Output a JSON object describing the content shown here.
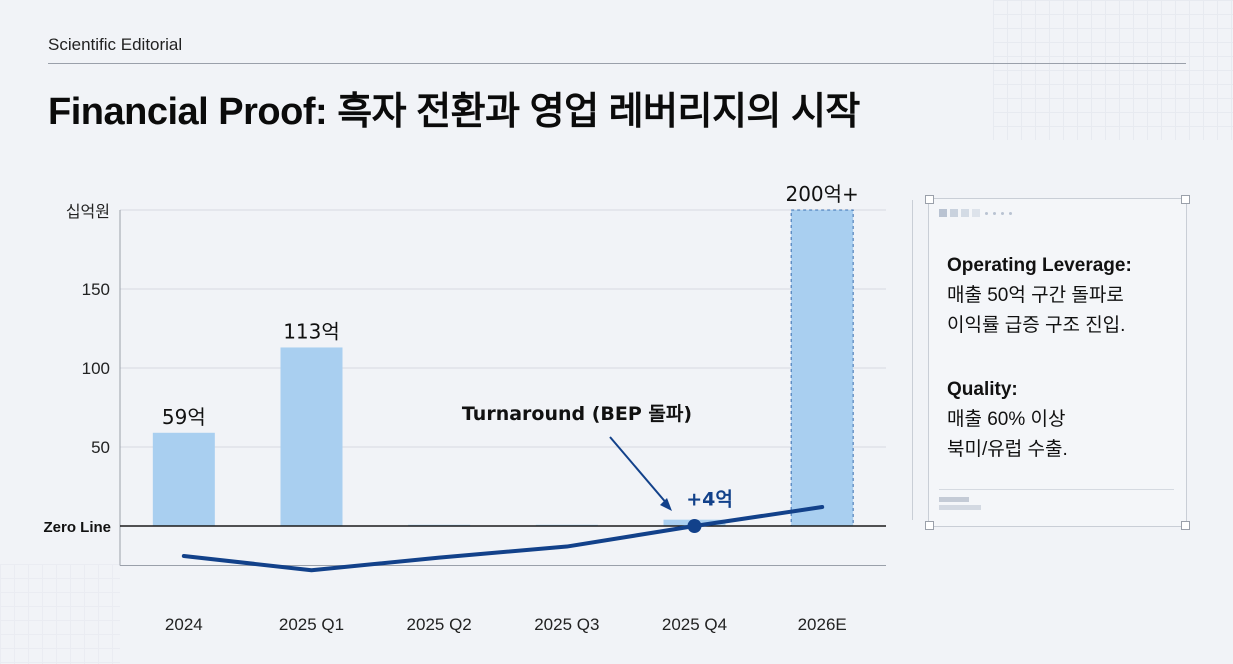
{
  "header": {
    "kicker": "Scientific Editorial",
    "title": "Financial Proof: 흑자 전환과 영업 레버리지의 시작"
  },
  "chart_data": {
    "type": "bar",
    "ylabel": "십억원",
    "ylim": [
      -25,
      200
    ],
    "yticks": [
      50,
      100,
      150
    ],
    "zero_label": "Zero Line",
    "categories": [
      "2024",
      "2025 Q1",
      "2025 Q2",
      "2025 Q3",
      "2025 Q4",
      "2026E"
    ],
    "series": [
      {
        "values": [
          59,
          113,
          0,
          0,
          4,
          200
        ]
      }
    ],
    "bar_labels": [
      "59억",
      "113억",
      "",
      "",
      "+4억",
      "200억+"
    ],
    "line_values": [
      -19,
      -28,
      -20,
      -13,
      0,
      12
    ],
    "annotation": "Turnaround (BEP 돌파)",
    "colors": {
      "bar": "#a9cff0",
      "line": "#12418a",
      "grid": "#d6dae1",
      "zero": "#1b1b1b"
    }
  },
  "panel": {
    "leverage_title": "Operating Leverage:",
    "leverage_line1": "매출 50억 구간 돌파로",
    "leverage_line2": "이익률 급증 구조 진입.",
    "quality_title": "Quality:",
    "quality_line1": "매출 60% 이상",
    "quality_line2": "북미/유럽 수출."
  }
}
